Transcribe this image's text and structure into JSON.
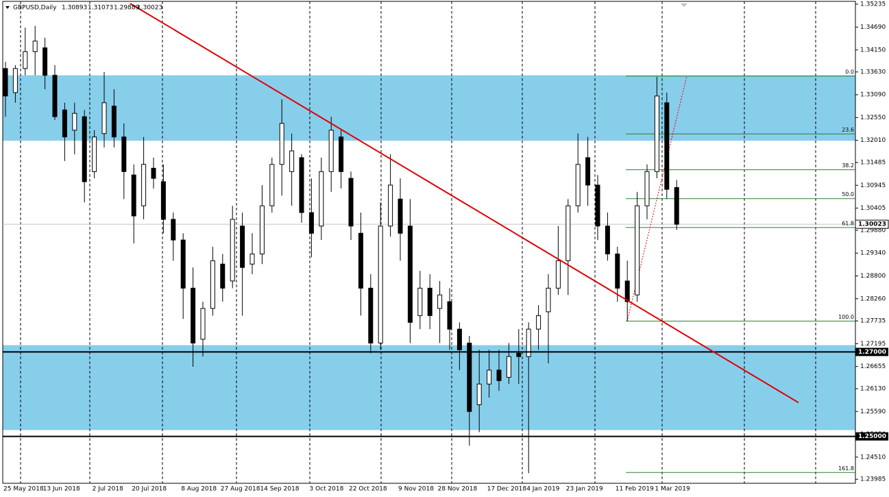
{
  "chart_data": {
    "type": "candlestick",
    "title": "GBPUSD,Daily",
    "categories": [
      "25 May 2018",
      null,
      null,
      null,
      "13 Jun 2018",
      null,
      null,
      null,
      null,
      "2 Jul 2018",
      null,
      null,
      null,
      "20 Jul 2018",
      null,
      null,
      null,
      null,
      "8 Aug 2018",
      null,
      null,
      null,
      "27 Aug 2018",
      null,
      null,
      null,
      "14 Sep 2018",
      null,
      null,
      null,
      null,
      "3 Oct 2018",
      null,
      null,
      null,
      "22 Oct 2018",
      null,
      null,
      null,
      null,
      "9 Nov 2018",
      null,
      null,
      null,
      "28 Nov 2018",
      null,
      null,
      null,
      null,
      "17 Dec 2018",
      null,
      null,
      null,
      "4 Jan 2019",
      null,
      null,
      null,
      "23 Jan 2019",
      null,
      null,
      null,
      null,
      "11 Feb 2019",
      null,
      null,
      null,
      "1 Mar 2019",
      null,
      null
    ],
    "open": [
      1.3371,
      1.3314,
      1.3371,
      1.3411,
      1.342,
      1.3355,
      1.3273,
      1.3225,
      1.3257,
      1.3127,
      1.3217,
      1.3282,
      1.3209,
      1.3119,
      1.3046,
      1.3135,
      1.3103,
      1.3014,
      1.2965,
      1.2851,
      1.273,
      1.2803,
      1.2908,
      1.2868,
      1.2998,
      1.2908,
      1.2932,
      1.3046,
      1.3144,
      1.3127,
      1.316,
      1.303,
      1.2998,
      1.3127,
      1.3209,
      1.3111,
      1.2981,
      1.2851,
      1.2721,
      1.2998,
      1.3062,
      1.2998,
      1.2786,
      1.2851,
      1.2803,
      1.2819,
      1.2754,
      1.2721,
      1.2575,
      1.2624,
      1.2657,
      1.264,
      1.2697,
      1.2689,
      1.2754,
      1.2795,
      1.2851,
      1.2916,
      1.3046,
      1.316,
      1.3095,
      1.2998,
      1.2932,
      1.2868,
      1.2835,
      1.3046,
      1.3127,
      1.329,
      1.30893
    ],
    "high": [
      1.3387,
      1.3379,
      1.3468,
      1.3472,
      1.3444,
      1.3379,
      1.329,
      1.329,
      1.3273,
      1.3225,
      1.3363,
      1.3322,
      1.3241,
      1.3144,
      1.3209,
      1.316,
      1.3144,
      1.303,
      1.2981,
      1.29,
      1.2819,
      1.2949,
      1.2932,
      1.3046,
      1.303,
      1.2981,
      1.3095,
      1.316,
      1.3298,
      1.3217,
      1.3168,
      1.3111,
      1.316,
      1.3257,
      1.3225,
      1.3127,
      1.303,
      1.2884,
      1.3054,
      1.3168,
      1.3111,
      1.3062,
      1.2892,
      1.2884,
      1.2868,
      1.2851,
      1.277,
      1.2738,
      1.2705,
      1.2705,
      1.2705,
      1.2721,
      1.2754,
      1.277,
      1.2811,
      1.2884,
      1.2998,
      1.3062,
      1.3217,
      1.3209,
      1.3119,
      1.303,
      1.2949,
      1.2916,
      1.3079,
      1.3144,
      1.3351,
      1.3314,
      1.31073
    ],
    "low": [
      1.3257,
      1.329,
      1.3355,
      1.3355,
      1.3322,
      1.3249,
      1.3152,
      1.3168,
      1.3054,
      1.3111,
      1.3184,
      1.3184,
      1.3062,
      1.2957,
      1.3014,
      1.3087,
      1.2981,
      1.2916,
      1.2778,
      1.2665,
      1.2689,
      1.2786,
      1.2819,
      1.2851,
      1.2786,
      1.2884,
      1.2908,
      1.303,
      1.307,
      1.3046,
      1.3006,
      1.2924,
      1.2965,
      1.3079,
      1.3087,
      1.2965,
      1.2786,
      1.2697,
      1.2705,
      1.2973,
      1.2916,
      1.2721,
      1.2754,
      1.2754,
      1.2721,
      1.2705,
      1.2657,
      1.2478,
      1.251,
      1.2592,
      1.2608,
      1.2624,
      1.2624,
      1.2413,
      1.2705,
      1.2673,
      1.2835,
      1.2835,
      1.303,
      1.3046,
      1.2965,
      1.2916,
      1.2819,
      1.2773,
      1.2819,
      1.3014,
      1.3111,
      1.3062,
      1.29889
    ],
    "close": [
      1.3306,
      1.3371,
      1.3411,
      1.3436,
      1.3355,
      1.3257,
      1.3209,
      1.3265,
      1.3103,
      1.3209,
      1.329,
      1.3209,
      1.3127,
      1.3022,
      1.3144,
      1.3111,
      1.3014,
      1.2965,
      1.2851,
      1.2721,
      1.2803,
      1.2916,
      1.2851,
      1.3014,
      1.29,
      1.2932,
      1.3046,
      1.3144,
      1.3241,
      1.3176,
      1.303,
      1.2981,
      1.3127,
      1.3225,
      1.3127,
      1.2998,
      1.2851,
      1.2721,
      1.2998,
      1.3095,
      1.2981,
      1.277,
      1.2851,
      1.2786,
      1.2835,
      1.2754,
      1.2705,
      1.2559,
      1.2624,
      1.2657,
      1.2632,
      1.2689,
      1.2689,
      1.2754,
      1.2786,
      1.2851,
      1.2916,
      1.3046,
      1.3144,
      1.3095,
      1.2998,
      1.2932,
      1.2851,
      1.2819,
      1.3046,
      1.3127,
      1.3306,
      1.3085,
      1.30023
    ],
    "ylim": [
      1.2389,
      1.353
    ],
    "yticks": [
      1.35235,
      {
        "value": 1.3469,
        "label": "1.34690"
      },
      {
        "value": 1.3415,
        "label": "1.34150"
      },
      {
        "value": 1.3363,
        "label": "1.33630"
      },
      {
        "value": 1.3309,
        "label": "1.33090"
      },
      {
        "value": 1.3255,
        "label": "1.32550"
      },
      {
        "value": 1.3201,
        "label": "1.32010"
      },
      1.31485,
      1.30945,
      1.30405,
      {
        "value": 1.2988,
        "label": "1.29880"
      },
      {
        "value": 1.2934,
        "label": "1.29340"
      },
      {
        "value": 1.288,
        "label": "1.28800"
      },
      {
        "value": 1.2826,
        "label": "1.28260"
      },
      1.27735,
      1.27195,
      1.26655,
      {
        "value": 1.2613,
        "label": "1.26130"
      },
      {
        "value": 1.2559,
        "label": "1.25590"
      },
      {
        "value": 1.2505,
        "label": "1.25050"
      },
      {
        "value": 1.2451,
        "label": "1.24510"
      },
      1.23985
    ],
    "zones": [
      {
        "from": 1.32,
        "to": 1.3355,
        "color": "#87ceeb"
      },
      {
        "from": 1.2515,
        "to": 1.2716,
        "color": "#87ceeb"
      }
    ],
    "hlines": [
      {
        "value": 1.27,
        "label": "1.27000"
      },
      {
        "value": 1.25,
        "label": "1.25000"
      }
    ],
    "trendline": {
      "start": 1.3525,
      "end": 1.258,
      "color": "#e00000"
    },
    "fibonacci": {
      "high": 1.3353,
      "low": 1.2773,
      "color": "#2e7d32",
      "levels": [
        {
          "value": 0,
          "label": "0.0"
        },
        23.6,
        38.2,
        {
          "value": 50,
          "label": "50.0"
        },
        61.8,
        {
          "value": 100,
          "label": "100.0"
        },
        161.8
      ]
    }
  }
}
